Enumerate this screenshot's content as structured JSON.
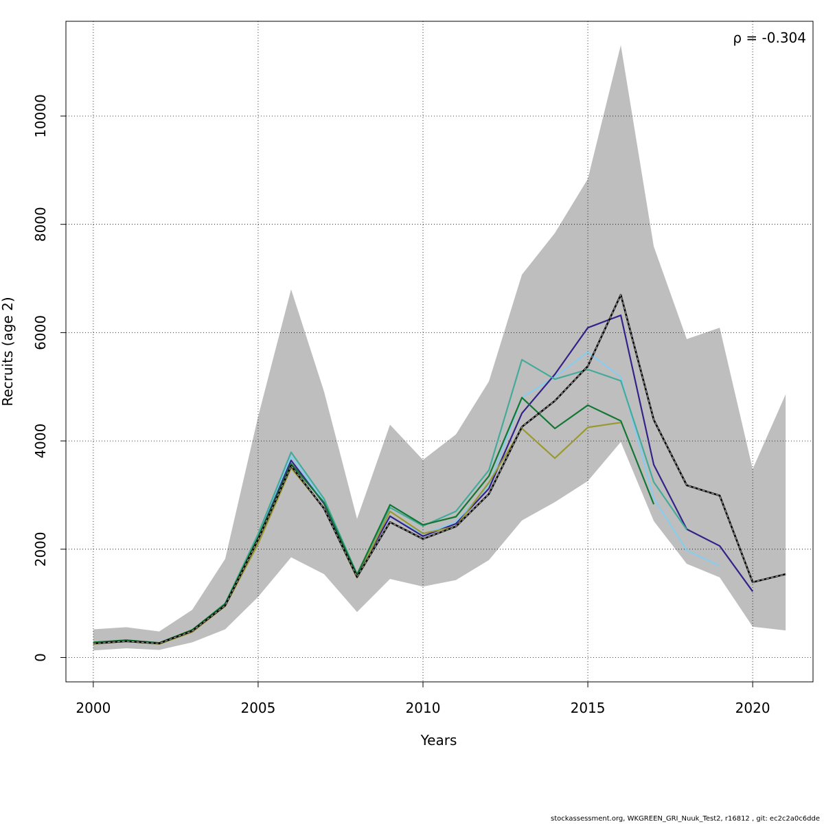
{
  "chart_data": {
    "type": "line",
    "title": "",
    "xlabel": "Years",
    "ylabel": "Recruits (age 2)",
    "xlim": [
      1999.17,
      2021.83
    ],
    "ylim": [
      -450,
      11750
    ],
    "xticks": [
      2000,
      2005,
      2010,
      2015,
      2020
    ],
    "xtick_labels": [
      "2000",
      "2005",
      "2010",
      "2015",
      "2020"
    ],
    "yticks": [
      0,
      2000,
      4000,
      6000,
      8000,
      10000
    ],
    "ytick_labels": [
      "0",
      "2000",
      "4000",
      "6000",
      "8000",
      "10000"
    ],
    "grid": true,
    "annotation": "ρ = -0.304",
    "confidence_band": {
      "x": [
        2000,
        2001,
        2002,
        2003,
        2004,
        2005,
        2006,
        2007,
        2008,
        2009,
        2010,
        2011,
        2012,
        2013,
        2014,
        2015,
        2016,
        2017,
        2018,
        2019,
        2020,
        2021
      ],
      "lower": [
        130,
        170,
        140,
        280,
        520,
        1120,
        1850,
        1540,
        840,
        1450,
        1310,
        1430,
        1800,
        2530,
        2870,
        3260,
        3980,
        2520,
        1730,
        1480,
        570,
        500
      ],
      "upper": [
        520,
        560,
        480,
        880,
        1820,
        4450,
        6800,
        4910,
        2560,
        4300,
        3650,
        4120,
        5100,
        7070,
        7840,
        8840,
        11310,
        7590,
        5880,
        6090,
        3480,
        4860
      ],
      "color": "#bebebe"
    },
    "series": [
      {
        "color": "#000000",
        "dashed": true,
        "x": [
          2000,
          2001,
          2002,
          2003,
          2004,
          2005,
          2006,
          2007,
          2008,
          2009,
          2010,
          2011,
          2012,
          2013,
          2014,
          2015,
          2016,
          2017,
          2018,
          2019,
          2020,
          2021
        ],
        "values": [
          260,
          300,
          260,
          490,
          960,
          2180,
          3540,
          2750,
          1490,
          2500,
          2190,
          2420,
          3020,
          4260,
          4740,
          5380,
          6700,
          4390,
          3180,
          2990,
          1390,
          1540
        ]
      },
      {
        "color": "#88CCEE",
        "x": [
          2000,
          2001,
          2002,
          2003,
          2004,
          2005,
          2006,
          2007,
          2008,
          2009,
          2010,
          2011,
          2012,
          2013,
          2014,
          2015,
          2016,
          2017,
          2018,
          2019
        ],
        "values": [
          270,
          310,
          260,
          490,
          990,
          2230,
          3720,
          2880,
          1530,
          2600,
          2280,
          2500,
          3180,
          4800,
          5180,
          5640,
          5180,
          2940,
          1980,
          1690
        ]
      },
      {
        "color": "#332288",
        "x": [
          2000,
          2001,
          2002,
          2003,
          2004,
          2005,
          2006,
          2007,
          2008,
          2009,
          2010,
          2011,
          2012,
          2013,
          2014,
          2015,
          2016,
          2017,
          2018,
          2019,
          2020
        ],
        "values": [
          265,
          305,
          260,
          490,
          980,
          2210,
          3640,
          2840,
          1510,
          2610,
          2240,
          2470,
          3120,
          4510,
          5230,
          6090,
          6320,
          3560,
          2370,
          2060,
          1220
        ]
      },
      {
        "color": "#44AA99",
        "x": [
          2000,
          2001,
          2002,
          2003,
          2004,
          2005,
          2006,
          2007,
          2008,
          2009,
          2010,
          2011,
          2012,
          2013,
          2014,
          2015,
          2016,
          2017,
          2018
        ],
        "values": [
          275,
          320,
          265,
          500,
          1000,
          2280,
          3790,
          2930,
          1540,
          2770,
          2430,
          2700,
          3460,
          5500,
          5140,
          5320,
          5110,
          3240,
          2360
        ]
      },
      {
        "color": "#117733",
        "x": [
          2000,
          2001,
          2002,
          2003,
          2004,
          2005,
          2006,
          2007,
          2008,
          2009,
          2010,
          2011,
          2012,
          2013,
          2014,
          2015,
          2016,
          2017
        ],
        "values": [
          280,
          320,
          270,
          510,
          990,
          2220,
          3580,
          2860,
          1530,
          2820,
          2450,
          2600,
          3350,
          4800,
          4230,
          4660,
          4370,
          2830
        ]
      },
      {
        "color": "#999933",
        "x": [
          2000,
          2001,
          2002,
          2003,
          2004,
          2005,
          2006,
          2007,
          2008,
          2009,
          2010,
          2011,
          2012,
          2013,
          2014,
          2015,
          2016
        ],
        "values": [
          250,
          300,
          250,
          470,
          950,
          2100,
          3500,
          2760,
          1470,
          2700,
          2290,
          2420,
          3230,
          4230,
          3680,
          4250,
          4340
        ]
      }
    ]
  },
  "footer": "stockassessment.org, WKGREEN_GRI_Nuuk_Test2, r16812 , git: ec2c2a0c6dde"
}
